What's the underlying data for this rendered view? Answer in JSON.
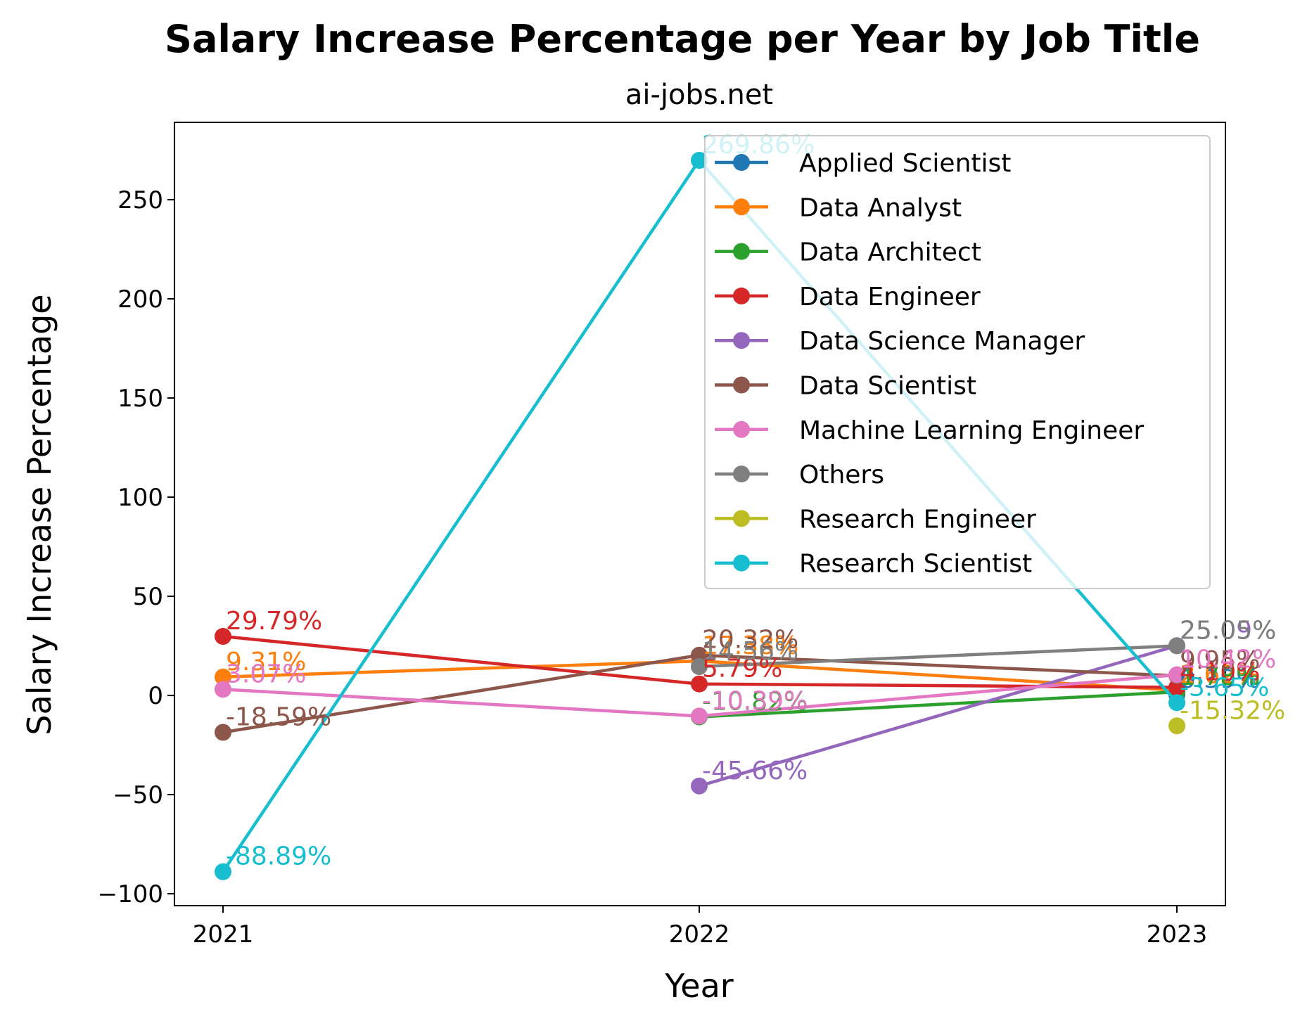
{
  "chart_data": {
    "type": "line",
    "title": "Salary Increase Percentage per Year by Job Title",
    "subtitle": "ai-jobs.net",
    "xlabel": "Year",
    "ylabel": "Salary Increase Percentage",
    "categories": [
      "2021",
      "2022",
      "2023"
    ],
    "ylim": [
      -106,
      289
    ],
    "yticks": [
      -100,
      -50,
      0,
      50,
      100,
      150,
      200,
      250
    ],
    "ytick_labels": [
      "−100",
      "−50",
      "0",
      "50",
      "100",
      "150",
      "200",
      "250"
    ],
    "grid": false,
    "legend_position": "top-right",
    "series": [
      {
        "name": "Applied Scientist",
        "color": "#1f77b4",
        "values": [
          null,
          null,
          0.39
        ],
        "labels": [
          "",
          "",
          "0.39%"
        ]
      },
      {
        "name": "Data Analyst",
        "color": "#ff7f0e",
        "values": [
          9.31,
          17.38,
          2.62
        ],
        "labels": [
          "9.31%",
          "17.38%",
          "2.62%"
        ]
      },
      {
        "name": "Data Architect",
        "color": "#2ca02c",
        "values": [
          null,
          -10.82,
          1.78
        ],
        "labels": [
          "",
          "-10.82%",
          "1.78%"
        ]
      },
      {
        "name": "Data Engineer",
        "color": "#d62728",
        "values": [
          29.79,
          5.79,
          4.1
        ],
        "labels": [
          "29.79%",
          "5.79%",
          "4.10%"
        ]
      },
      {
        "name": "Data Science Manager",
        "color": "#9467bd",
        "values": [
          null,
          -45.66,
          25.09
        ],
        "labels": [
          "",
          "-45.66%",
          "25.09%"
        ]
      },
      {
        "name": "Data Scientist",
        "color": "#8c564b",
        "values": [
          -18.59,
          20.32,
          9.95
        ],
        "labels": [
          "-18.59%",
          "20.32%",
          "9.95%"
        ]
      },
      {
        "name": "Machine Learning Engineer",
        "color": "#e377c2",
        "values": [
          3.07,
          -10.39,
          10.42
        ],
        "labels": [
          "3.07%",
          "-10.39%",
          "10.42%"
        ]
      },
      {
        "name": "Others",
        "color": "#7f7f7f",
        "values": [
          null,
          14.56,
          25.05
        ],
        "labels": [
          "",
          "14.56%",
          "25.05%"
        ]
      },
      {
        "name": "Research Engineer",
        "color": "#bcbd22",
        "values": [
          null,
          null,
          -15.32
        ],
        "labels": [
          "",
          "",
          "-15.32%"
        ]
      },
      {
        "name": "Research Scientist",
        "color": "#17becf",
        "values": [
          -88.89,
          269.86,
          -3.65
        ],
        "labels": [
          "-88.89%",
          "269.86%",
          "-3.65%"
        ]
      }
    ]
  }
}
